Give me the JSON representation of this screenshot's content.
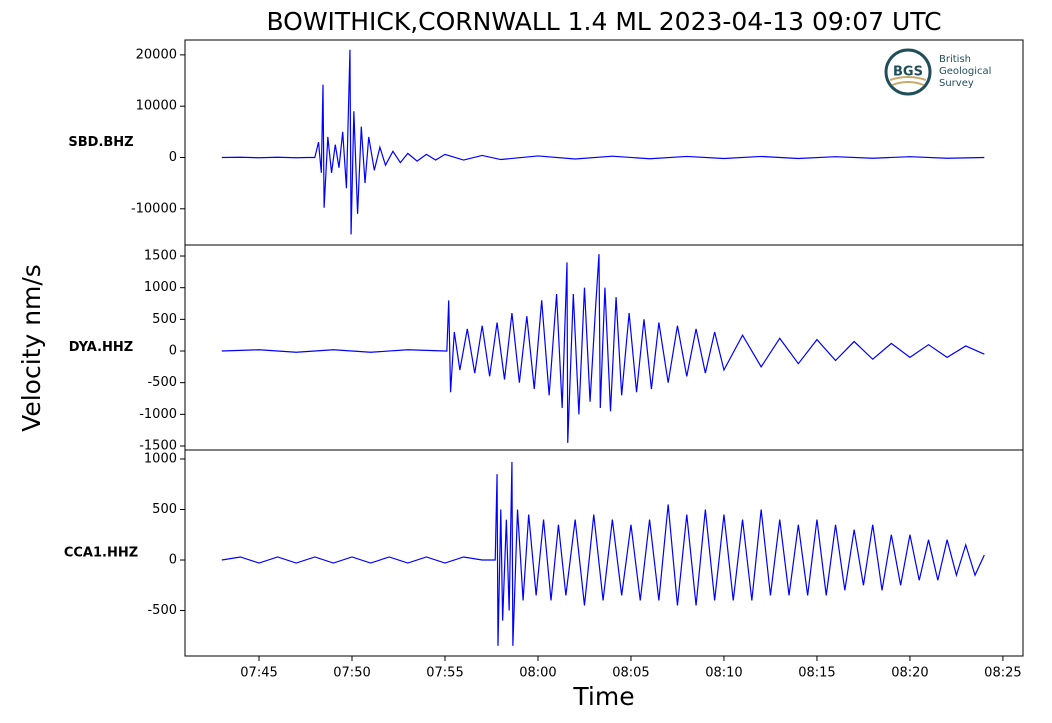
{
  "title": "BOWITHICK,CORNWALL 1.4 ML   2023-04-13 09:07 UTC",
  "ylabel": "Velocity nm/s",
  "xlabel": "Time",
  "logo": {
    "abbr": "BGS",
    "lines": [
      "British",
      "Geological",
      "Survey"
    ]
  },
  "chart_data": [
    {
      "type": "line",
      "label": "SBD.BHZ",
      "color": "#0000ff",
      "x": [
        463,
        464,
        465,
        466,
        467,
        467.6,
        468,
        468.2,
        468.35,
        468.44,
        468.5,
        468.7,
        468.9,
        469.1,
        469.3,
        469.5,
        469.7,
        469.89,
        469.95,
        470.1,
        470.3,
        470.5,
        470.7,
        470.9,
        471.2,
        471.5,
        471.8,
        472.2,
        472.6,
        473,
        473.5,
        474,
        474.5,
        475,
        476,
        477,
        478,
        480,
        482,
        484,
        486,
        488,
        490,
        492,
        494,
        496,
        498,
        500,
        502,
        504
      ],
      "values": [
        0,
        50,
        -50,
        50,
        -50,
        0,
        0,
        3000,
        -3000,
        14200,
        -9800,
        4000,
        -3000,
        2500,
        -2000,
        5000,
        -6000,
        21000,
        -15000,
        9000,
        -11000,
        6000,
        -5000,
        4000,
        -2500,
        2000,
        -1500,
        1200,
        -1000,
        800,
        -700,
        600,
        -500,
        600,
        -500,
        400,
        -400,
        300,
        -300,
        250,
        -250,
        200,
        -200,
        200,
        -200,
        150,
        -150,
        150,
        -150,
        0
      ],
      "xlim": [
        461.02,
        506.08
      ],
      "ylim": [
        -17060,
        22900
      ],
      "yticks": [
        -10000,
        0,
        10000,
        20000
      ]
    },
    {
      "type": "line",
      "label": "DYA.HHZ",
      "color": "#0000ff",
      "x": [
        463,
        465,
        467,
        469,
        471,
        473,
        475,
        475.1,
        475.2,
        475.3,
        475.5,
        475.8,
        476.2,
        476.6,
        477,
        477.4,
        477.8,
        478.2,
        478.6,
        479,
        479.4,
        479.8,
        480.2,
        480.6,
        481,
        481.3,
        481.56,
        481.6,
        481.9,
        482.2,
        482.5,
        482.8,
        483.1,
        483.28,
        483.35,
        483.6,
        483.9,
        484.2,
        484.5,
        484.9,
        485.3,
        485.7,
        486.1,
        486.5,
        487,
        487.5,
        488,
        488.5,
        489,
        489.5,
        490,
        491,
        492,
        493,
        494,
        495,
        496,
        497,
        498,
        499,
        500,
        501,
        502,
        503,
        504
      ],
      "values": [
        0,
        20,
        -20,
        20,
        -20,
        20,
        0,
        0,
        800,
        -650,
        300,
        -300,
        350,
        -350,
        400,
        -400,
        450,
        -450,
        600,
        -500,
        550,
        -600,
        800,
        -700,
        900,
        -900,
        1400,
        -1450,
        900,
        -1000,
        1000,
        -800,
        700,
        1530,
        -900,
        1000,
        -950,
        850,
        -700,
        600,
        -650,
        500,
        -600,
        450,
        -500,
        400,
        -400,
        350,
        -350,
        300,
        -300,
        250,
        -250,
        200,
        -200,
        180,
        -150,
        150,
        -130,
        120,
        -100,
        100,
        -100,
        80,
        -50
      ],
      "xlim": [
        461.02,
        506.08
      ],
      "ylim": [
        -1563,
        1674
      ],
      "yticks": [
        -1500,
        -1000,
        -500,
        0,
        500,
        1000,
        1500
      ]
    },
    {
      "type": "line",
      "label": "CCA1.HHZ",
      "color": "#0000ff",
      "x": [
        463,
        464,
        465,
        466,
        467,
        468,
        469,
        470,
        471,
        472,
        473,
        474,
        475,
        476,
        477,
        477.7,
        477.8,
        477.85,
        478,
        478.1,
        478.3,
        478.45,
        478.6,
        478.65,
        478.9,
        479.2,
        479.5,
        479.9,
        480.3,
        480.7,
        481.1,
        481.5,
        482,
        482.5,
        483,
        483.5,
        484,
        484.5,
        485,
        485.5,
        486,
        486.5,
        487,
        487.5,
        488,
        488.5,
        489,
        489.5,
        490,
        490.5,
        491,
        491.5,
        492,
        492.5,
        493,
        493.5,
        494,
        494.5,
        495,
        495.5,
        496,
        496.5,
        497,
        497.5,
        498,
        498.5,
        499,
        499.5,
        500,
        500.5,
        501,
        501.5,
        502,
        502.5,
        503,
        503.5,
        504
      ],
      "values": [
        0,
        30,
        -30,
        30,
        -30,
        30,
        -30,
        30,
        -30,
        30,
        -30,
        30,
        -30,
        30,
        0,
        0,
        850,
        -850,
        500,
        -600,
        400,
        -500,
        970,
        -850,
        500,
        -400,
        450,
        -350,
        400,
        -400,
        350,
        -350,
        400,
        -450,
        450,
        -400,
        400,
        -350,
        350,
        -400,
        400,
        -400,
        550,
        -450,
        450,
        -450,
        500,
        -400,
        450,
        -400,
        400,
        -400,
        500,
        -350,
        400,
        -350,
        350,
        -350,
        400,
        -350,
        350,
        -300,
        300,
        -250,
        350,
        -300,
        250,
        -250,
        250,
        -200,
        200,
        -200,
        200,
        -150,
        150,
        -150,
        50
      ],
      "xlim": [
        461.02,
        506.08
      ],
      "ylim": [
        -950,
        1089
      ],
      "yticks": [
        -500,
        0,
        500,
        1000
      ],
      "xticks": [
        {
          "value": 465,
          "label": "07:45"
        },
        {
          "value": 470,
          "label": "07:50"
        },
        {
          "value": 475,
          "label": "07:55"
        },
        {
          "value": 480,
          "label": "08:00"
        },
        {
          "value": 485,
          "label": "08:05"
        },
        {
          "value": 490,
          "label": "08:10"
        },
        {
          "value": 495,
          "label": "08:15"
        },
        {
          "value": 500,
          "label": "08:20"
        },
        {
          "value": 505,
          "label": "08:25"
        }
      ]
    }
  ]
}
